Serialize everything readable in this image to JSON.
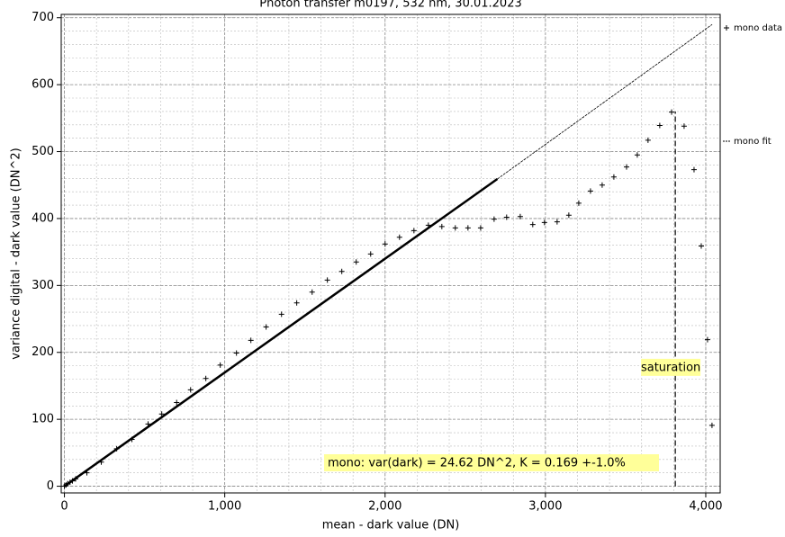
{
  "chart_data": {
    "type": "scatter",
    "title": "Photon transfer m0197, 532 nm, 30.01.2023",
    "xlabel": "mean - dark value (DN)",
    "ylabel": "variance digital - dark value (DN^2)",
    "xlim": [
      -20,
      4090
    ],
    "ylim": [
      -10,
      705
    ],
    "xticks": [
      0,
      {
        "value": 1000,
        "label": "1,000"
      },
      {
        "value": 2000,
        "label": "2,000"
      },
      {
        "value": 3000,
        "label": "3,000"
      },
      {
        "value": 4000,
        "label": "4,000"
      }
    ],
    "yticks": [
      0,
      100,
      200,
      300,
      400,
      500,
      600,
      700
    ],
    "grid": true,
    "legend": "right",
    "series": [
      {
        "name": "mono data",
        "color": "#000000",
        "marker": "+",
        "x": [
          0,
          10,
          20,
          35,
          50,
          70,
          140,
          230,
          326,
          421,
          522,
          607,
          700,
          787,
          882,
          972,
          1073,
          1163,
          1258,
          1354,
          1449,
          1545,
          1640,
          1730,
          1820,
          1910,
          2000,
          2090,
          2180,
          2270,
          2354,
          2438,
          2517,
          2596,
          2680,
          2758,
          2843,
          2921,
          2994,
          3073,
          3146,
          3208,
          3281,
          3354,
          3427,
          3506,
          3573,
          3640,
          3713,
          3787,
          3865,
          3927,
          3972,
          4011,
          4039
        ],
        "values": [
          0,
          2,
          4,
          6,
          8,
          11,
          20,
          36,
          56,
          70,
          93,
          108,
          125,
          144,
          161,
          181,
          199,
          218,
          238,
          257,
          274,
          290,
          308,
          321,
          335,
          347,
          362,
          372,
          382,
          390,
          388,
          386,
          386,
          386,
          399,
          402,
          403,
          391,
          394,
          395,
          405,
          423,
          441,
          450,
          462,
          477,
          495,
          517,
          539,
          559,
          538,
          473,
          359,
          219,
          91
        ]
      },
      {
        "name": "mono fit",
        "color": "#000000",
        "marker": "line",
        "x": [
          0,
          2700,
          4040
        ],
        "values": [
          0,
          459,
          690
        ],
        "widths": [
          2.5,
          0.8
        ]
      }
    ],
    "vlines": [
      {
        "x": 3810,
        "y": [
          0,
          560
        ],
        "label": "saturation"
      }
    ],
    "annotation": "mono: var(dark) = 24.62 DN^2, K = 0.169 +-1.0%"
  }
}
